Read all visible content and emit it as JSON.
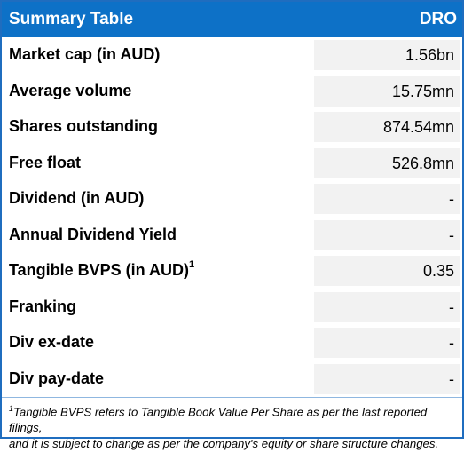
{
  "header": {
    "title": "Summary Table",
    "ticker": "DRO"
  },
  "rows": [
    {
      "label": "Market cap (in AUD)",
      "value": "1.56bn"
    },
    {
      "label": "Average volume",
      "value": "15.75mn"
    },
    {
      "label": "Shares outstanding",
      "value": "874.54mn"
    },
    {
      "label": "Free float",
      "value": "526.8mn"
    },
    {
      "label": "Dividend (in AUD)",
      "value": "-"
    },
    {
      "label": "Annual Dividend Yield",
      "value": "-"
    },
    {
      "label": "Tangible BVPS (in AUD)",
      "sup": "1",
      "value": "0.35"
    },
    {
      "label": "Franking",
      "value": "-"
    },
    {
      "label": "Div ex-date",
      "value": "-"
    },
    {
      "label": "Div pay-date",
      "value": "-"
    }
  ],
  "footnote": {
    "marker": "1",
    "line1": "Tangible BVPS refers to Tangible Book Value Per Share as per the last reported filings,",
    "line2": "and it is subject to change as per the company's equity or share structure changes."
  },
  "colors": {
    "header_bg": "#0d71c7",
    "border": "#1f6dbf",
    "value_cell_bg": "#f2f2f2"
  }
}
